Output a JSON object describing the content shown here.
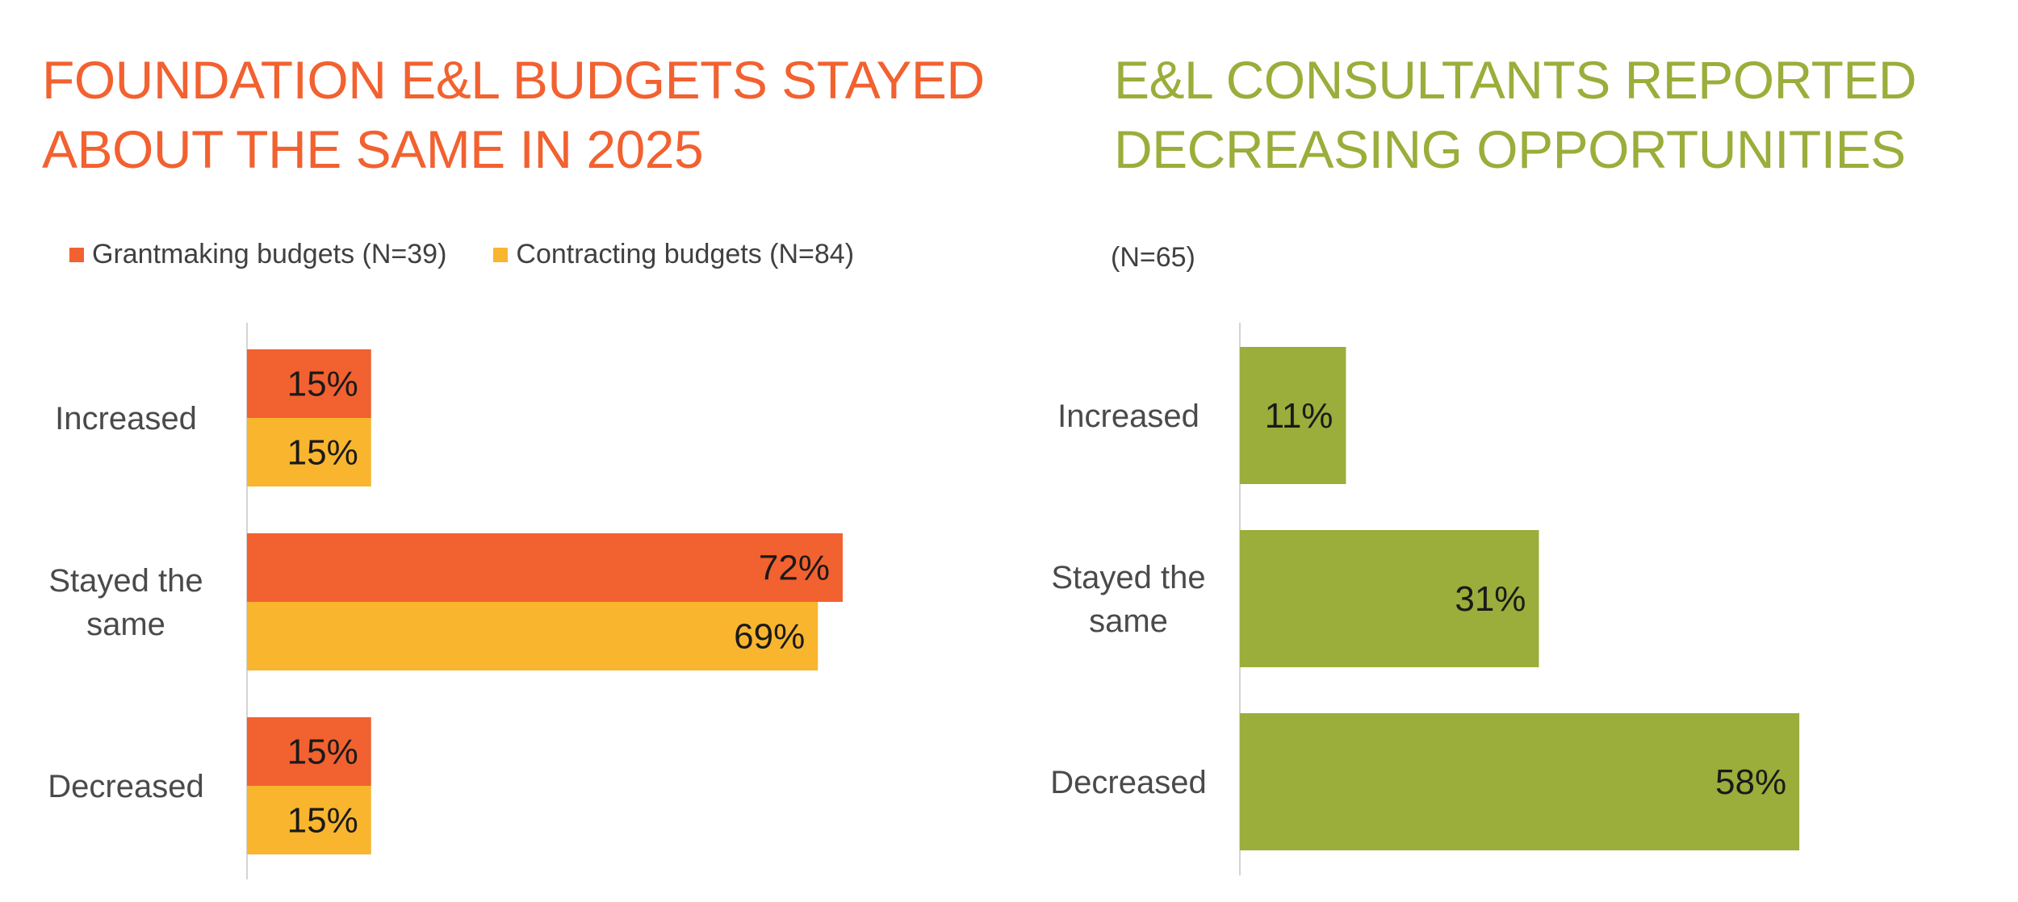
{
  "left": {
    "title_lines": [
      "FOUNDATION E&L BUDGETS STAYED",
      "ABOUT THE SAME IN 2025"
    ],
    "title_color": "#F26130",
    "legend": [
      {
        "label": "Grantmaking budgets (N=39)",
        "color": "#F26130"
      },
      {
        "label": "Contracting budgets (N=84)",
        "color": "#F9B52E"
      }
    ]
  },
  "right": {
    "title_lines": [
      "E&L CONSULTANTS REPORTED",
      "DECREASING OPPORTUNITIES"
    ],
    "title_color": "#9BAD3A",
    "n_label": "(N=65)"
  },
  "chart_data": [
    {
      "type": "bar",
      "orientation": "horizontal",
      "title": "FOUNDATION E&L BUDGETS STAYED ABOUT THE SAME IN 2025",
      "categories": [
        "Increased",
        "Stayed the same",
        "Decreased"
      ],
      "series": [
        {
          "name": "Grantmaking budgets (N=39)",
          "color": "#F26130",
          "values": [
            15,
            72,
            15
          ],
          "labels": [
            "15%",
            "72%",
            "15%"
          ]
        },
        {
          "name": "Contracting budgets (N=84)",
          "color": "#F9B52E",
          "values": [
            15,
            69,
            15
          ],
          "labels": [
            "15%",
            "69%",
            "15%"
          ]
        }
      ],
      "xlim": [
        0,
        100
      ],
      "grid": false,
      "legend": "top"
    },
    {
      "type": "bar",
      "orientation": "horizontal",
      "title": "E&L CONSULTANTS REPORTED DECREASING OPPORTUNITIES",
      "subtitle": "(N=65)",
      "categories": [
        "Increased",
        "Stayed the same",
        "Decreased"
      ],
      "series": [
        {
          "color": "#9BAD3A",
          "values": [
            11,
            31,
            58
          ],
          "labels": [
            "11%",
            "31%",
            "58%"
          ]
        }
      ],
      "xlim": [
        0,
        100
      ],
      "grid": false,
      "legend": "none"
    }
  ]
}
